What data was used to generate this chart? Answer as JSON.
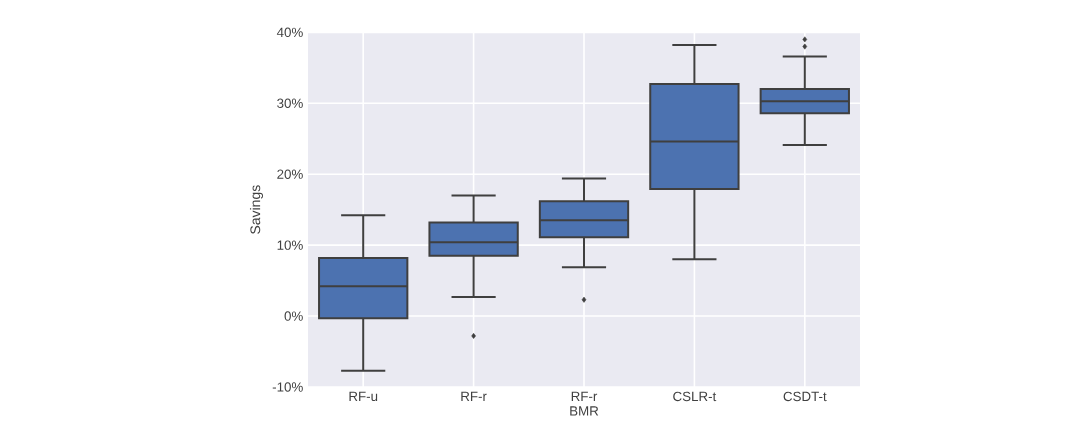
{
  "chart_data": {
    "type": "box",
    "ylabel": "Savings",
    "categories": [
      "RF-u",
      "RF-r",
      "RF-r BMR",
      "CSLR-t",
      "CSDT-t"
    ],
    "color": "#4c72b0",
    "boxes": [
      {
        "low": -7.7,
        "q1": -0.3,
        "median": 4.2,
        "q3": 8.2,
        "high": 14.2
      },
      {
        "low": 2.7,
        "q1": 8.5,
        "median": 10.4,
        "q3": 13.2,
        "high": 17.0,
        "outliers": [
          -2.8
        ]
      },
      {
        "low": 6.9,
        "q1": 11.1,
        "median": 13.5,
        "q3": 16.2,
        "high": 19.4,
        "outliers": [
          2.3
        ]
      },
      {
        "low": 8.0,
        "q1": 17.9,
        "median": 24.6,
        "q3": 32.7,
        "high": 38.2
      },
      {
        "low": 24.1,
        "q1": 28.6,
        "median": 30.3,
        "q3": 32.0,
        "high": 36.6,
        "outliers": [
          38.0,
          39.0
        ]
      }
    ],
    "ylim": [
      -10,
      40
    ],
    "yticks": [
      {
        "value": -10,
        "label": "-10%"
      },
      {
        "value": 0,
        "label": "0%"
      },
      {
        "value": 10,
        "label": "10%"
      },
      {
        "value": 20,
        "label": "20%"
      },
      {
        "value": 30,
        "label": "30%"
      },
      {
        "value": 40,
        "label": "40%"
      }
    ],
    "grid": true,
    "marker": "diamond"
  }
}
